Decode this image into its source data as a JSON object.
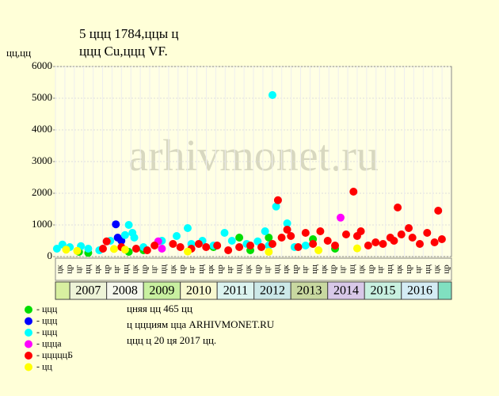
{
  "chart_data": {
    "type": "scatter",
    "title": "5 ццц 1784,ццы ц",
    "subtitle": "ццц Cu,ццц VF.",
    "y_label": "цц,цц",
    "watermark": "arhivmonet.ru",
    "xlim": [
      2006.61,
      2017.36
    ],
    "ylim": [
      0,
      6000
    ],
    "yticks": [
      0,
      1000,
      2000,
      3000,
      4000,
      5000,
      6000
    ],
    "grid": true,
    "years": [
      2007,
      2008,
      2009,
      2010,
      2011,
      2012,
      2013,
      2014,
      2015,
      2016
    ],
    "year_colors": [
      "#eef4d8",
      "#f6f8ee",
      "#c8f0a0",
      "#f8f8d0",
      "#dcf4f0",
      "#cce8e8",
      "#c8d8a0",
      "#d8c8e8",
      "#c8f0e0",
      "#d4ecf4"
    ],
    "quarter_labels": [
      "цк",
      "цр",
      "цг",
      "цц",
      "цк",
      "цр",
      "цг",
      "цц",
      "цк",
      "цр",
      "цг",
      "цц",
      "цк",
      "цр",
      "цг",
      "цц",
      "цк",
      "цр",
      "цг",
      "цц",
      "цк",
      "цр",
      "цг",
      "цц",
      "цк",
      "цр",
      "цг",
      "цц",
      "цк",
      "цр",
      "цг",
      "цц",
      "цк",
      "цр",
      "цг",
      "цц",
      "цк",
      "цр",
      "цг",
      "цц",
      "цк",
      "цр"
    ],
    "series": [
      {
        "name": "- ццц",
        "color": "#00dd00",
        "x": [
          2007.25,
          2007.5,
          2008.6,
          2009.0,
          2010.9,
          2011.6,
          2011.9,
          2012.4,
          2013.6,
          2014.2
        ],
        "values": [
          150,
          120,
          150,
          200,
          300,
          600,
          200,
          600,
          550,
          250
        ]
      },
      {
        "name": "- ццц",
        "color": "#0000ff",
        "x": [
          2008.25,
          2008.3,
          2008.4
        ],
        "values": [
          1020,
          600,
          500
        ]
      },
      {
        "name": "- ццц",
        "color": "#00ffff",
        "x": [
          2006.65,
          2006.8,
          2007.0,
          2007.3,
          2007.5,
          2007.8,
          2008.1,
          2008.5,
          2008.6,
          2008.7,
          2008.75,
          2009.0,
          2009.5,
          2009.9,
          2010.2,
          2010.3,
          2010.6,
          2010.9,
          2011.2,
          2011.4,
          2011.8,
          2012.1,
          2012.3,
          2012.4,
          2012.5,
          2012.6,
          2012.9,
          2013.1,
          2013.4
        ],
        "values": [
          250,
          380,
          300,
          330,
          250,
          200,
          500,
          680,
          1000,
          750,
          600,
          300,
          500,
          650,
          900,
          400,
          500,
          350,
          750,
          500,
          400,
          480,
          800,
          350,
          5100,
          1580,
          1050,
          300,
          350
        ]
      },
      {
        "name": "- ццца",
        "color": "#ff00ff",
        "x": [
          2009.4,
          2009.5,
          2014.35
        ],
        "values": [
          480,
          250,
          1230
        ]
      },
      {
        "name": "- цццццБ",
        "color": "#ff0000",
        "x": [
          2007.9,
          2008.0,
          2008.4,
          2008.8,
          2009.1,
          2009.3,
          2009.8,
          2010.0,
          2010.3,
          2010.5,
          2010.7,
          2011.0,
          2011.3,
          2011.6,
          2011.9,
          2012.2,
          2012.5,
          2012.65,
          2012.75,
          2012.9,
          2013.0,
          2013.2,
          2013.4,
          2013.6,
          2013.8,
          2014.0,
          2014.2,
          2014.5,
          2014.7,
          2014.8,
          2014.9,
          2015.1,
          2015.3,
          2015.5,
          2015.7,
          2015.8,
          2015.9,
          2016.0,
          2016.2,
          2016.3,
          2016.5,
          2016.7,
          2016.9,
          2017.0,
          2017.1
        ],
        "values": [
          250,
          480,
          300,
          250,
          200,
          350,
          400,
          300,
          250,
          400,
          300,
          350,
          200,
          300,
          350,
          300,
          400,
          1780,
          600,
          850,
          650,
          300,
          750,
          400,
          800,
          500,
          350,
          700,
          2050,
          650,
          800,
          350,
          450,
          400,
          600,
          500,
          1550,
          700,
          900,
          600,
          400,
          750,
          450,
          1450,
          550
        ]
      },
      {
        "name": "- цц",
        "color": "#ffff00",
        "x": [
          2006.9,
          2007.2,
          2008.2,
          2008.5,
          2010.2,
          2012.4,
          2013.75,
          2014.8
        ],
        "values": [
          220,
          180,
          240,
          220,
          160,
          150,
          200,
          260
        ]
      }
    ],
    "notes": [
      "цняя цц 465 цц",
      "ц ццциям цца ARHIVMONET.RU",
      "ццц ц 20 ця 2017 цц."
    ]
  }
}
